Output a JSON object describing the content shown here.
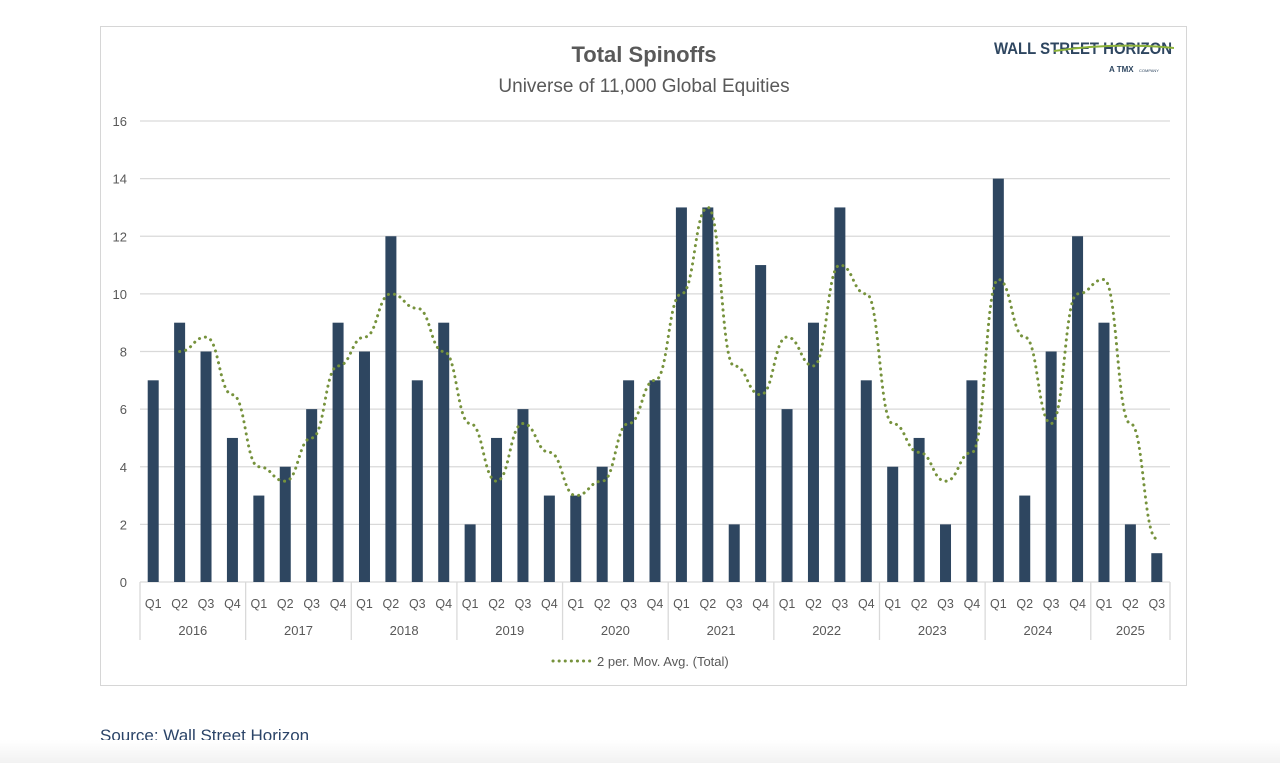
{
  "chart_data": {
    "type": "bar",
    "title": "Total Spinoffs",
    "subtitle": "Universe of 11,000 Global Equities",
    "years": [
      "2016",
      "2017",
      "2018",
      "2019",
      "2020",
      "2021",
      "2022",
      "2023",
      "2024",
      "2025"
    ],
    "categories": [
      "Q1",
      "Q2",
      "Q3",
      "Q4",
      "Q1",
      "Q2",
      "Q3",
      "Q4",
      "Q1",
      "Q2",
      "Q3",
      "Q4",
      "Q1",
      "Q2",
      "Q3",
      "Q4",
      "Q1",
      "Q2",
      "Q3",
      "Q4",
      "Q1",
      "Q2",
      "Q3",
      "Q4",
      "Q1",
      "Q2",
      "Q3",
      "Q4",
      "Q1",
      "Q2",
      "Q3",
      "Q4",
      "Q1",
      "Q2",
      "Q3",
      "Q4",
      "Q1",
      "Q2",
      "Q3"
    ],
    "series": [
      {
        "type": "bar",
        "color": "#2e4660",
        "values": [
          7,
          9,
          8,
          5,
          3,
          4,
          6,
          9,
          8,
          12,
          7,
          9,
          2,
          5,
          6,
          3,
          3,
          4,
          7,
          7,
          13,
          13,
          2,
          11,
          6,
          9,
          13,
          7,
          4,
          5,
          2,
          7,
          14,
          3,
          8,
          12,
          9,
          2,
          1
        ]
      },
      {
        "type": "line",
        "style": "dotted",
        "name": "2 per. Mov. Avg. (Total)",
        "color": "#76923c",
        "values": [
          null,
          8,
          8.5,
          6.5,
          4,
          3.5,
          5,
          7.5,
          8.5,
          10,
          9.5,
          8,
          5.5,
          3.5,
          5.5,
          4.5,
          3,
          3.5,
          5.5,
          7,
          10,
          13,
          7.5,
          6.5,
          8.5,
          7.5,
          11,
          10,
          5.5,
          4.5,
          3.5,
          4.5,
          10.5,
          8.5,
          5.5,
          10,
          10.5,
          5.5,
          1.5
        ]
      }
    ],
    "yticks": [
      "0",
      "2",
      "4",
      "6",
      "8",
      "10",
      "12",
      "14",
      "16"
    ],
    "ylim": [
      0,
      16
    ],
    "grid": true,
    "legend": "bottom"
  },
  "logo": {
    "name": "WALL STREET HORIZON",
    "tagline": "A TMX COMPANY"
  },
  "source": "Source: Wall Street Horizon"
}
